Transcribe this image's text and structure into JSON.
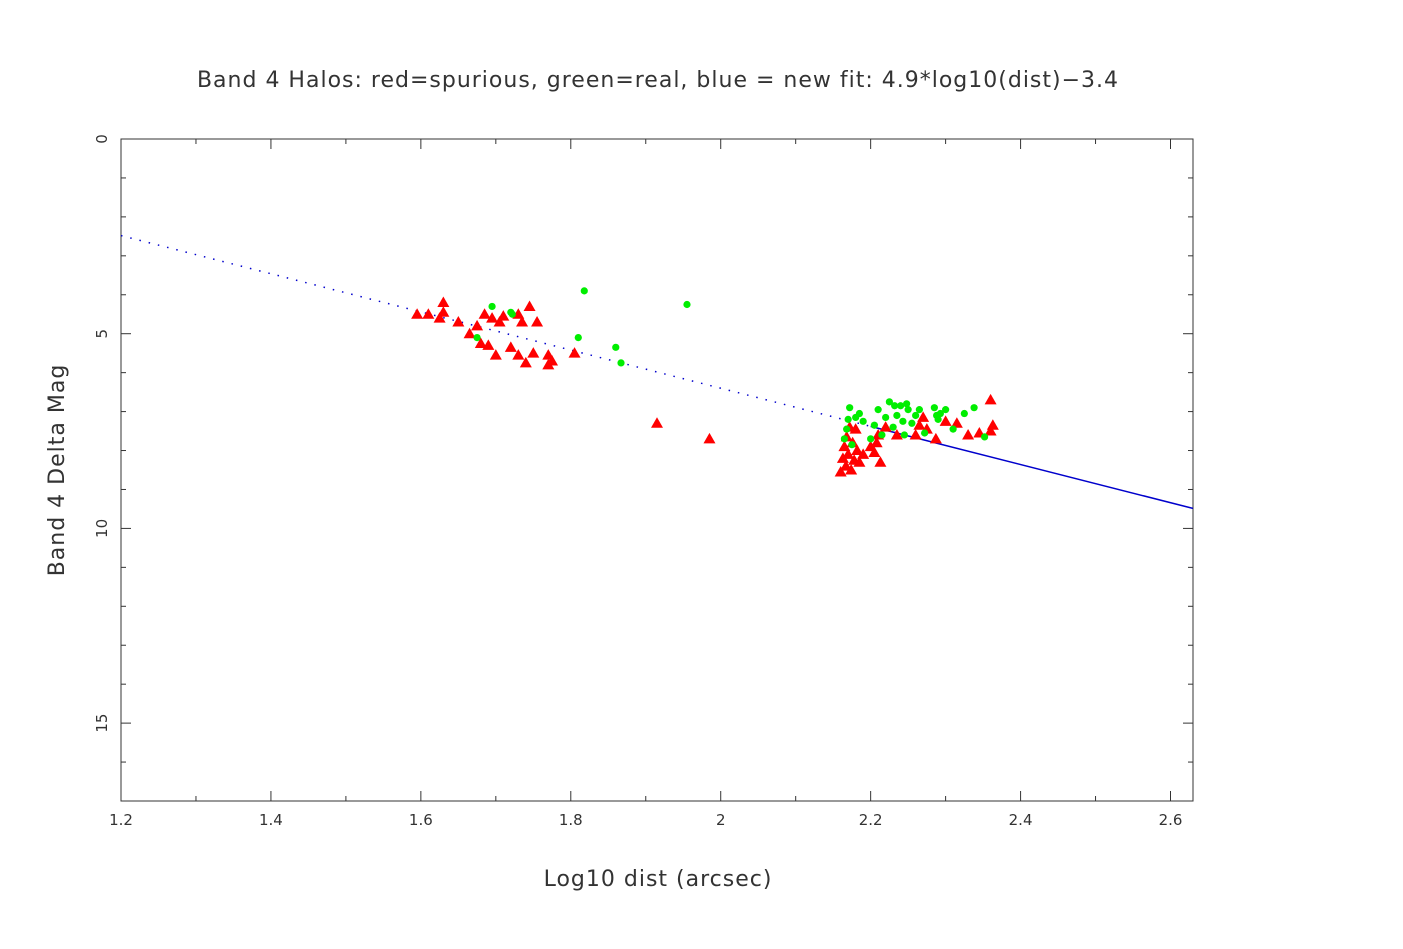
{
  "chart_data": {
    "type": "scatter",
    "title": "Band 4 Halos: red=spurious, green=real, blue = new fit: 4.9*log10(dist)−3.4",
    "xlabel": "Log10 dist (arcsec)",
    "ylabel": "Band 4 Delta Mag",
    "xlim": [
      1.2,
      2.63
    ],
    "ylim": [
      17,
      0
    ],
    "y_inverted": true,
    "grid": false,
    "x_ticks": [
      "1.2",
      "1.4",
      "1.6",
      "1.8",
      "2",
      "2.2",
      "2.4",
      "2.6"
    ],
    "x_tick_values": [
      1.2,
      1.4,
      1.6,
      1.8,
      2.0,
      2.2,
      2.4,
      2.6
    ],
    "y_ticks": [
      "0",
      "5",
      "10",
      "15"
    ],
    "y_tick_values": [
      0,
      5,
      10,
      15
    ],
    "colors": {
      "spurious": "#ff0000",
      "real": "#00ee00",
      "fit": "#0000cc",
      "axis": "#333333"
    },
    "series": [
      {
        "name": "spurious",
        "marker": "triangle",
        "points": [
          [
            1.595,
            4.5
          ],
          [
            1.61,
            4.5
          ],
          [
            1.625,
            4.6
          ],
          [
            1.63,
            4.2
          ],
          [
            1.63,
            4.45
          ],
          [
            1.65,
            4.7
          ],
          [
            1.665,
            5.0
          ],
          [
            1.675,
            4.8
          ],
          [
            1.68,
            5.25
          ],
          [
            1.685,
            4.5
          ],
          [
            1.69,
            5.3
          ],
          [
            1.695,
            4.6
          ],
          [
            1.7,
            5.55
          ],
          [
            1.705,
            4.7
          ],
          [
            1.71,
            4.55
          ],
          [
            1.72,
            5.35
          ],
          [
            1.73,
            4.5
          ],
          [
            1.73,
            5.55
          ],
          [
            1.735,
            4.7
          ],
          [
            1.74,
            5.75
          ],
          [
            1.745,
            4.3
          ],
          [
            1.75,
            5.5
          ],
          [
            1.755,
            4.7
          ],
          [
            1.77,
            5.8
          ],
          [
            1.77,
            5.55
          ],
          [
            1.775,
            5.7
          ],
          [
            1.805,
            5.5
          ],
          [
            1.915,
            7.3
          ],
          [
            1.985,
            7.7
          ],
          [
            2.16,
            8.55
          ],
          [
            2.163,
            8.2
          ],
          [
            2.165,
            7.9
          ],
          [
            2.167,
            8.4
          ],
          [
            2.168,
            7.65
          ],
          [
            2.17,
            8.1
          ],
          [
            2.172,
            7.4
          ],
          [
            2.174,
            8.5
          ],
          [
            2.176,
            7.8
          ],
          [
            2.178,
            8.25
          ],
          [
            2.18,
            7.45
          ],
          [
            2.182,
            8.0
          ],
          [
            2.185,
            8.3
          ],
          [
            2.19,
            8.1
          ],
          [
            2.2,
            7.9
          ],
          [
            2.205,
            8.05
          ],
          [
            2.208,
            7.8
          ],
          [
            2.21,
            7.6
          ],
          [
            2.213,
            8.3
          ],
          [
            2.22,
            7.4
          ],
          [
            2.235,
            7.6
          ],
          [
            2.26,
            7.6
          ],
          [
            2.265,
            7.35
          ],
          [
            2.27,
            7.15
          ],
          [
            2.275,
            7.45
          ],
          [
            2.287,
            7.7
          ],
          [
            2.3,
            7.25
          ],
          [
            2.315,
            7.3
          ],
          [
            2.33,
            7.6
          ],
          [
            2.345,
            7.55
          ],
          [
            2.36,
            6.7
          ],
          [
            2.36,
            7.5
          ],
          [
            2.363,
            7.35
          ]
        ]
      },
      {
        "name": "real",
        "marker": "circle",
        "points": [
          [
            1.675,
            5.1
          ],
          [
            1.695,
            4.3
          ],
          [
            1.72,
            4.45
          ],
          [
            1.722,
            4.5
          ],
          [
            1.818,
            3.9
          ],
          [
            1.81,
            5.1
          ],
          [
            1.86,
            5.35
          ],
          [
            1.867,
            5.75
          ],
          [
            1.955,
            4.25
          ],
          [
            2.165,
            7.7
          ],
          [
            2.168,
            7.45
          ],
          [
            2.17,
            7.2
          ],
          [
            2.172,
            6.9
          ],
          [
            2.175,
            7.85
          ],
          [
            2.18,
            7.15
          ],
          [
            2.185,
            7.05
          ],
          [
            2.19,
            7.25
          ],
          [
            2.2,
            7.7
          ],
          [
            2.205,
            7.35
          ],
          [
            2.21,
            6.95
          ],
          [
            2.215,
            7.6
          ],
          [
            2.22,
            7.15
          ],
          [
            2.225,
            6.75
          ],
          [
            2.23,
            7.4
          ],
          [
            2.232,
            6.85
          ],
          [
            2.235,
            7.1
          ],
          [
            2.24,
            6.85
          ],
          [
            2.243,
            7.25
          ],
          [
            2.245,
            7.6
          ],
          [
            2.248,
            6.8
          ],
          [
            2.25,
            6.95
          ],
          [
            2.255,
            7.3
          ],
          [
            2.26,
            7.1
          ],
          [
            2.265,
            6.95
          ],
          [
            2.272,
            7.55
          ],
          [
            2.285,
            6.9
          ],
          [
            2.288,
            7.1
          ],
          [
            2.29,
            7.2
          ],
          [
            2.293,
            7.05
          ],
          [
            2.3,
            6.95
          ],
          [
            2.31,
            7.45
          ],
          [
            2.325,
            7.05
          ],
          [
            2.338,
            6.9
          ],
          [
            2.352,
            7.65
          ]
        ]
      }
    ],
    "fit_line": {
      "slope": 4.9,
      "intercept": -3.4,
      "x_from": 1.2,
      "x_to": 2.63
    }
  }
}
